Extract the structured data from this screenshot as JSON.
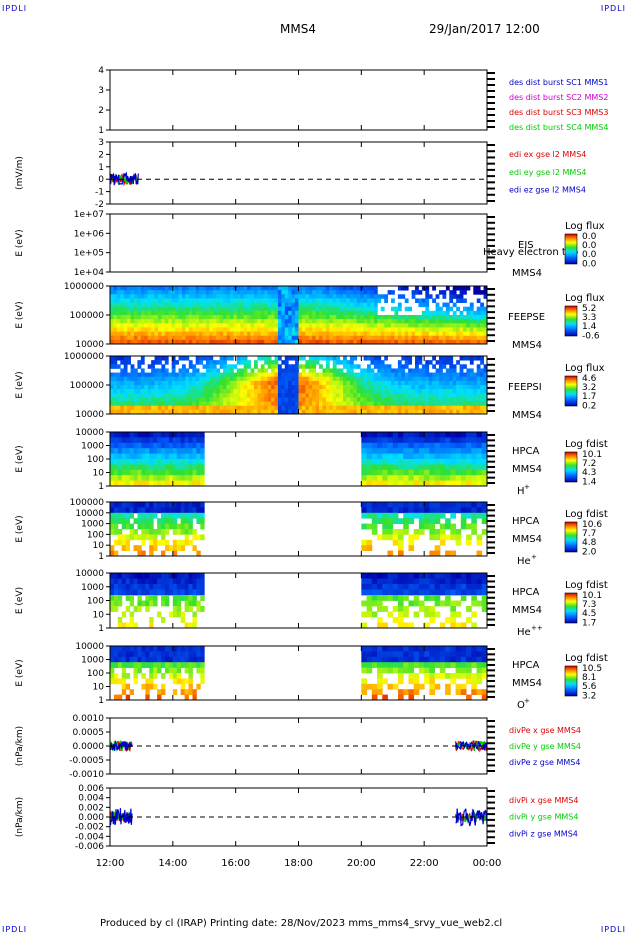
{
  "header": {
    "corner_tl": "IPDLI",
    "corner_tr": "IPDLI",
    "spacecraft": "MMS4",
    "datetime": "29/Jan/2017 12:00"
  },
  "footer": {
    "corner_bl": "IPDLI",
    "corner_br": "IPDLI",
    "text": "Produced by cl (IRAP)   Printing date: 28/Nov/2023   mms_mms4_srvy_vue_web2.cl"
  },
  "colors": {
    "c1": "#0000cc",
    "c2": "#cc00cc",
    "c3": "#dd0000",
    "c4": "#00cc00",
    "panel_border": "#000000",
    "dash": "#000000"
  },
  "xaxis": {
    "ticks": [
      "12:00",
      "14:00",
      "16:00",
      "18:00",
      "20:00",
      "22:00",
      "00:00"
    ]
  },
  "chart_data": [
    {
      "id": "ephemeris",
      "type": "line",
      "ylim": [
        1,
        4
      ],
      "yticks": [
        "4",
        "3",
        "2",
        "1"
      ],
      "legend": [
        {
          "text": "des dist burst SC1 MMS1",
          "color": "#0000cc"
        },
        {
          "text": "des dist burst SC2 MMS2",
          "color": "#cc00cc"
        },
        {
          "text": "des dist burst SC3 MMS3",
          "color": "#dd0000"
        },
        {
          "text": "des dist burst SC4 MMS4",
          "color": "#00cc00"
        }
      ]
    },
    {
      "id": "edi",
      "type": "line",
      "ylabel": "(mV/m)",
      "ylim": [
        -2,
        3
      ],
      "yticks": [
        "3",
        "2",
        "1",
        "0",
        "-1",
        "-2"
      ],
      "legend": [
        {
          "text": "edi ex gse l2 MMS4",
          "color": "#dd0000"
        },
        {
          "text": "edi ey gse l2 MMS4",
          "color": "#00cc00"
        },
        {
          "text": "edi ez gse l2 MMS4",
          "color": "#0000cc"
        }
      ],
      "data_time_range_hours": [
        12.0,
        12.9
      ]
    },
    {
      "id": "eis",
      "type": "heatmap",
      "ylabel": "E (eV)",
      "yscale": "log",
      "yticks": [
        "1e+07",
        "1e+06",
        "1e+05",
        "1e+04"
      ],
      "label_top": "EIS",
      "label_mid": "Heavy electron top",
      "label_bottom": "MMS4",
      "cbar_title": "Log flux",
      "cbar_ticks": [
        "0.0",
        "0.0",
        "0.0",
        "0.0"
      ]
    },
    {
      "id": "feepse",
      "type": "heatmap",
      "ylabel": "E (eV)",
      "yscale": "log",
      "yticks": [
        "1000000",
        "100000",
        "10000"
      ],
      "label_top": "FEEPSE",
      "label_bottom": "MMS4",
      "cbar_title": "Log flux",
      "cbar_ticks": [
        "5.2",
        "3.3",
        "1.4",
        "-0.6"
      ],
      "data_time_range_hours": [
        12.0,
        24.0
      ]
    },
    {
      "id": "feepsi",
      "type": "heatmap",
      "ylabel": "E (eV)",
      "yscale": "log",
      "yticks": [
        "1000000",
        "100000",
        "10000"
      ],
      "label_top": "FEEPSI",
      "label_bottom": "MMS4",
      "cbar_title": "Log flux",
      "cbar_ticks": [
        "4.6",
        "3.2",
        "1.7",
        "0.2"
      ],
      "data_time_range_hours": [
        12.0,
        24.0
      ]
    },
    {
      "id": "hpca_h",
      "type": "heatmap",
      "ylabel": "E (eV)",
      "yscale": "log",
      "yticks": [
        "10000",
        "1000",
        "100",
        "10",
        "1"
      ],
      "label_top": "HPCA",
      "label_mid": "MMS4",
      "species": "H",
      "species_sup": "+",
      "cbar_title": "Log fdist",
      "cbar_ticks": [
        "10.1",
        "7.2",
        "4.3",
        "1.4"
      ],
      "data_intervals_hours": [
        [
          12.0,
          15.0
        ],
        [
          20.0,
          24.0
        ]
      ]
    },
    {
      "id": "hpca_he",
      "type": "heatmap",
      "ylabel": "E (eV)",
      "yscale": "log",
      "yticks": [
        "100000",
        "10000",
        "1000",
        "100",
        "10",
        "1"
      ],
      "label_top": "HPCA",
      "label_mid": "MMS4",
      "species": "He",
      "species_sup": "+",
      "cbar_title": "Log fdist",
      "cbar_ticks": [
        "10.6",
        "7.7",
        "4.8",
        "2.0"
      ],
      "data_intervals_hours": [
        [
          12.0,
          15.0
        ],
        [
          20.0,
          24.0
        ]
      ]
    },
    {
      "id": "hpca_hepp",
      "type": "heatmap",
      "ylabel": "E (eV)",
      "yscale": "log",
      "yticks": [
        "10000",
        "1000",
        "100",
        "10",
        "1"
      ],
      "label_top": "HPCA",
      "label_mid": "MMS4",
      "species": "He",
      "species_sup": "++",
      "cbar_title": "Log fdist",
      "cbar_ticks": [
        "10.1",
        "7.3",
        "4.5",
        "1.7"
      ],
      "data_intervals_hours": [
        [
          12.0,
          15.0
        ],
        [
          20.0,
          24.0
        ]
      ]
    },
    {
      "id": "hpca_o",
      "type": "heatmap",
      "ylabel": "E (eV)",
      "yscale": "log",
      "yticks": [
        "10000",
        "1000",
        "100",
        "10",
        "1"
      ],
      "label_top": "HPCA",
      "label_mid": "MMS4",
      "species": "O",
      "species_sup": "+",
      "cbar_title": "Log fdist",
      "cbar_ticks": [
        "10.5",
        "8.1",
        "5.6",
        "3.2"
      ],
      "data_intervals_hours": [
        [
          12.0,
          15.0
        ],
        [
          20.0,
          24.0
        ]
      ]
    },
    {
      "id": "divpe",
      "type": "line",
      "ylabel": "(nPa/km)",
      "ylim": [
        -0.013,
        0.011
      ],
      "yticks": [
        "0.0010",
        "0.0005",
        "0.0000",
        "-0.0005",
        "-0.0010"
      ],
      "legend": [
        {
          "text": "divPe x gse MMS4",
          "color": "#dd0000"
        },
        {
          "text": "divPe y gse MMS4",
          "color": "#00cc00"
        },
        {
          "text": "divPe z gse MMS4",
          "color": "#0000cc"
        }
      ],
      "data_intervals_hours": [
        [
          12.0,
          12.7
        ],
        [
          23.0,
          24.0
        ]
      ]
    },
    {
      "id": "divpi",
      "type": "line",
      "ylabel": "(nPa/km)",
      "ylim": [
        -0.006,
        0.006
      ],
      "yticks": [
        "0.006",
        "0.004",
        "0.002",
        "0.000",
        "-0.002",
        "-0.004",
        "-0.006"
      ],
      "legend": [
        {
          "text": "divPi x gse MMS4",
          "color": "#dd0000"
        },
        {
          "text": "divPi y gse MMS4",
          "color": "#00cc00"
        },
        {
          "text": "divPi z gse MMS4",
          "color": "#0000cc"
        }
      ],
      "data_intervals_hours": [
        [
          12.0,
          12.7
        ],
        [
          23.0,
          24.0
        ]
      ]
    }
  ]
}
